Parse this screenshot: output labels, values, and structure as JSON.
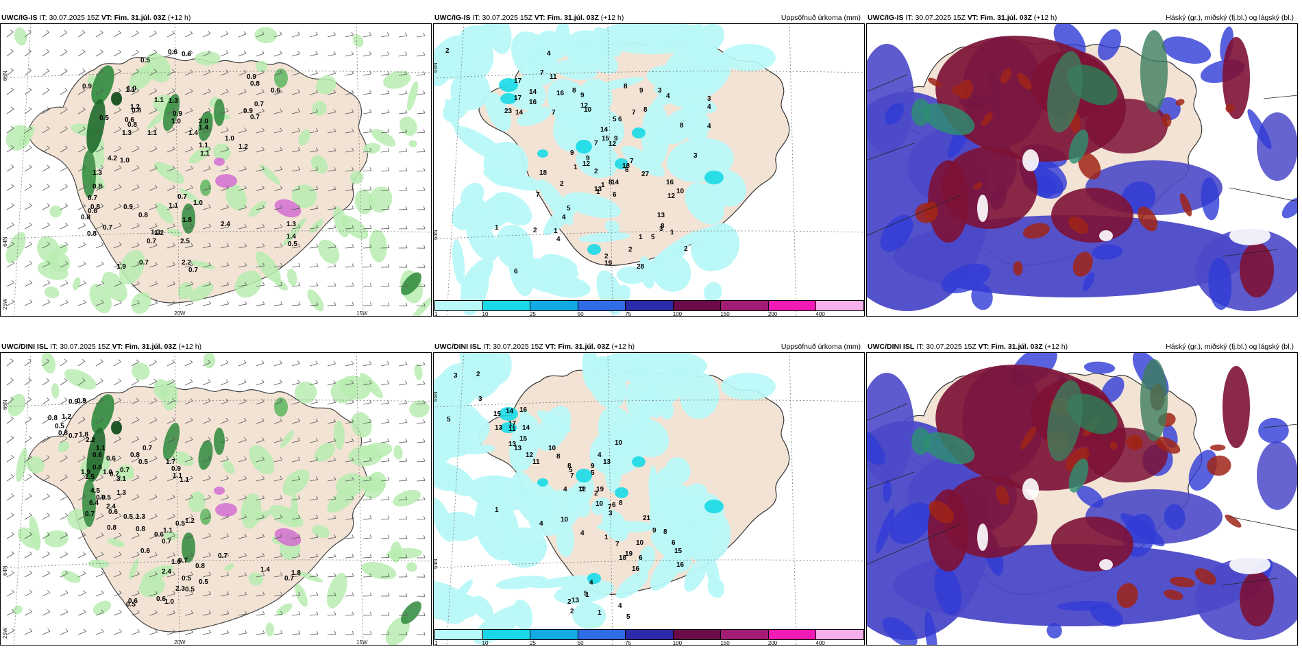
{
  "panels": [
    {
      "model": "UWC/IG-IS",
      "it_label": "IT:",
      "it": "30.07.2025 15Z",
      "vt_label": "VT:",
      "vt": "Fim. 31.júl. 03Z",
      "lead": "(+12 h)",
      "right_title": "",
      "axis_labels": {
        "lat_top": "66N",
        "lat_bottom": "64N",
        "lon_left": "25W",
        "lon_mid": "20W",
        "lon_right": "15W"
      },
      "values": [
        "0.5",
        "0.6",
        "0.6",
        "0.9",
        "0.9",
        "1.0",
        "0.8",
        "1.1",
        "1.3",
        "1.1",
        "1.2",
        "0.7",
        "0.6",
        "0.8",
        "0.9",
        "0.9",
        "0.7",
        "0.5",
        "0.6",
        "1.0",
        "2.0",
        "1.4",
        "1.4",
        "0.8",
        "1.1",
        "1.3",
        "1.0",
        "1.2",
        "1.1",
        "1.1",
        "4.2",
        "1.0",
        "1.3",
        "0.8",
        "0.7",
        "0.6",
        "0.8",
        "0.8",
        "1.1",
        "1.0",
        "0.8",
        "0.7",
        "1.3",
        "0.7",
        "1.2",
        "2.2",
        "0.7",
        "1.9",
        "0.7",
        "2.5",
        "1.4",
        "0.5",
        "1.3",
        "2.4",
        "1.8",
        "0.9",
        "0.8",
        "0.7"
      ]
    },
    {
      "model": "UWC/IG-IS",
      "it_label": "IT:",
      "it": "30.07.2025 15Z",
      "vt_label": "VT:",
      "vt": "Fim. 31.júl. 03Z",
      "lead": "(+12 h)",
      "right_title": "Uppsöfnuð úrkoma (mm)",
      "axis_labels": {
        "lat_top": "66N",
        "lat_bottom": "64N"
      },
      "values": [
        "2",
        "4",
        "7",
        "11",
        "17",
        "14",
        "17",
        "16",
        "23",
        "14",
        "9",
        "8",
        "12",
        "10",
        "7",
        "16",
        "8",
        "9",
        "8",
        "4",
        "3",
        "4",
        "7",
        "6",
        "14",
        "15",
        "9",
        "9",
        "12",
        "7",
        "1",
        "3",
        "5",
        "9",
        "12",
        "18",
        "8",
        "6",
        "7",
        "6",
        "8",
        "4",
        "3",
        "2",
        "1",
        "13",
        "14",
        "18",
        "27",
        "16",
        "10",
        "12",
        "13",
        "8",
        "3",
        "1",
        "2",
        "5",
        "2",
        "19",
        "28",
        "1",
        "2",
        "1",
        "2",
        "6",
        "4",
        "5",
        "7",
        "2",
        "1",
        "1",
        "4"
      ],
      "colorbar": {
        "ticks": [
          "1",
          "10",
          "25",
          "50",
          "75",
          "100",
          "150",
          "200",
          "400"
        ],
        "colors": [
          "#b9f8f8",
          "#1ad9e6",
          "#13a9e2",
          "#2f6de6",
          "#2b2aa8",
          "#6b0b49",
          "#a31c73",
          "#f21ab5",
          "#f6b0ec"
        ]
      }
    },
    {
      "model": "UWC/IG-IS",
      "it_label": "IT:",
      "it": "30.07.2025 15Z",
      "vt_label": "VT:",
      "vt": "Fim. 31.júl. 03Z",
      "lead": "(+12 h)",
      "right_title": "Háský (gr.), miðský (fj.bl.) og lágský (bl.)",
      "values": []
    },
    {
      "model": "UWC/DINI ISL",
      "it_label": "IT:",
      "it": "30.07.2025 15Z",
      "vt_label": "VT:",
      "vt": "Fim. 31.júl. 03Z",
      "lead": "(+12 h)",
      "right_title": "",
      "axis_labels": {
        "lat_top": "66N",
        "lat_bottom": "64N",
        "lon_left": "25W",
        "lon_mid": "20W",
        "lon_right": "15W"
      },
      "values": [
        "0.9",
        "0.9",
        "1.2",
        "0.8",
        "0.5",
        "0.8",
        "0.7",
        "1.8",
        "2.2",
        "1.1",
        "0.6",
        "0.6",
        "0.8",
        "1.0",
        "0.7",
        "0.8",
        "0.7",
        "0.5",
        "1.7",
        "0.9",
        "1.1",
        "1.1",
        "1.9",
        "1.5",
        "0.7",
        "3.1",
        "4.5",
        "0.5",
        "0.7",
        "0.9",
        "0.6",
        "0.5",
        "1.3",
        "0.8",
        "6.4",
        "1.3",
        "2.4",
        "0.8",
        "0.6",
        "1.1",
        "0.5",
        "1.2",
        "0.7",
        "0.7",
        "0.8",
        "0.6",
        "1.0",
        "0.5",
        "2.4",
        "0.7",
        "1.4",
        "1.8",
        "0.7",
        "0.5",
        "2.3",
        "1.0",
        "0.6",
        "0.5",
        "0.6",
        "0.5"
      ]
    },
    {
      "model": "UWC/DINI ISL",
      "it_label": "IT:",
      "it": "30.07.2025 15Z",
      "vt_label": "VT:",
      "vt": "Fim. 31.júl. 03Z",
      "lead": "(+12 h)",
      "right_title": "Uppsöfnuð úrkoma (mm)",
      "axis_labels": {
        "lat_top": "66N",
        "lat_bottom": "64N"
      },
      "values": [
        "3",
        "2",
        "5",
        "3",
        "14",
        "16",
        "15",
        "13",
        "17",
        "11",
        "14",
        "13",
        "13",
        "12",
        "15",
        "11",
        "10",
        "8",
        "8",
        "5",
        "4",
        "7",
        "9",
        "5",
        "3",
        "10",
        "4",
        "13",
        "12",
        "19",
        "10",
        "8",
        "7",
        "6",
        "21",
        "10",
        "19",
        "9",
        "8",
        "6",
        "15",
        "16",
        "6",
        "7",
        "3",
        "1",
        "2",
        "1",
        "10",
        "4",
        "4",
        "18",
        "16",
        "13",
        "5",
        "2",
        "1",
        "1",
        "2",
        "4",
        "5",
        "4"
      ],
      "colorbar": {
        "ticks": [
          "1",
          "10",
          "25",
          "50",
          "75",
          "100",
          "150",
          "200",
          "400"
        ],
        "colors": [
          "#b9f8f8",
          "#1ad9e6",
          "#13a9e2",
          "#2f6de6",
          "#2b2aa8",
          "#6b0b49",
          "#a31c73",
          "#f21ab5",
          "#f6b0ec"
        ]
      }
    },
    {
      "model": "UWC/DINI ISL",
      "it_label": "IT:",
      "it": "30.07.2025 15Z",
      "vt_label": "VT:",
      "vt": "Fim. 31.júl. 03Z",
      "lead": "(+12 h)",
      "right_title": "Háský (gr.), miðský (fj.bl.) og lágský (bl.)",
      "values": []
    }
  ]
}
